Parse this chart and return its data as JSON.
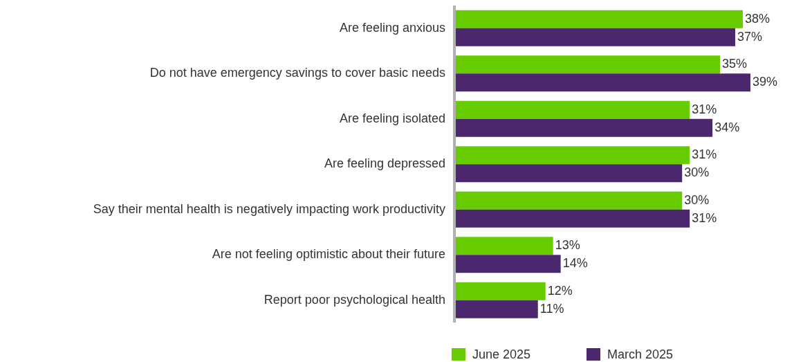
{
  "chart_data": {
    "type": "bar",
    "orientation": "horizontal",
    "categories": [
      "Are feeling anxious",
      "Do not have emergency savings to cover basic needs",
      "Are feeling isolated",
      "Are feeling depressed",
      "Say their mental health is negatively impacting work productivity",
      "Are not feeling optimistic about their future",
      "Report poor psychological health"
    ],
    "series": [
      {
        "name": "June 2025",
        "color": "#66cc00",
        "values": [
          38,
          35,
          31,
          31,
          30,
          13,
          12
        ],
        "value_labels": [
          "38%",
          "35%",
          "31%",
          "31%",
          "30%",
          "13%",
          "12%"
        ]
      },
      {
        "name": "March 2025",
        "color": "#4b286d",
        "values": [
          37,
          39,
          34,
          30,
          31,
          14,
          11
        ],
        "value_labels": [
          "37%",
          "39%",
          "34%",
          "30%",
          "31%",
          "14%",
          "11%"
        ]
      }
    ],
    "legend": "bottom"
  }
}
